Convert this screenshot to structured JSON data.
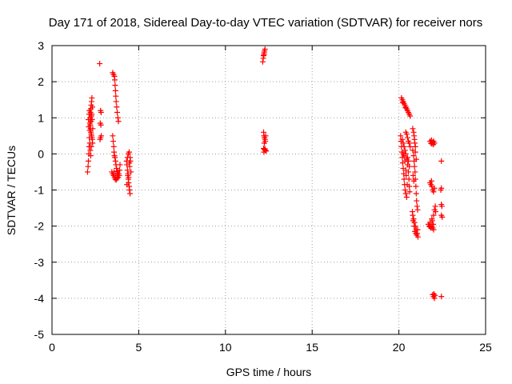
{
  "chart_data": {
    "type": "scatter",
    "title": "Day 171 of 2018, Sidereal Day-to-day VTEC variation (SDTVAR) for receiver nors",
    "xlabel": "GPS time / hours",
    "ylabel": "SDTVAR / TECUs",
    "xlim": [
      0,
      25
    ],
    "ylim": [
      -5,
      3
    ],
    "xticks": [
      0,
      5,
      10,
      15,
      20,
      25
    ],
    "yticks": [
      -5,
      -4,
      -3,
      -2,
      -1,
      0,
      1,
      2,
      3
    ],
    "xtick_labels": [
      "0",
      "5",
      "10",
      "15",
      "20",
      "25"
    ],
    "ytick_labels": [
      "-5",
      "-4",
      "-3",
      "-2",
      "-1",
      "0",
      "1",
      "2",
      "3"
    ],
    "grid": true,
    "marker": "+",
    "color": "#ff0000",
    "series": [
      {
        "name": "SDTVAR",
        "points": [
          [
            2.05,
            -0.5
          ],
          [
            2.08,
            -0.35
          ],
          [
            2.1,
            -0.2
          ],
          [
            2.12,
            0.0
          ],
          [
            2.14,
            0.2
          ],
          [
            2.15,
            0.45
          ],
          [
            2.17,
            0.65
          ],
          [
            2.18,
            0.85
          ],
          [
            2.2,
            1.0
          ],
          [
            2.22,
            1.15
          ],
          [
            2.24,
            1.25
          ],
          [
            2.26,
            1.35
          ],
          [
            2.28,
            1.45
          ],
          [
            2.3,
            1.55
          ],
          [
            2.2,
            0.8
          ],
          [
            2.22,
            0.7
          ],
          [
            2.24,
            0.6
          ],
          [
            2.26,
            0.55
          ],
          [
            2.28,
            0.5
          ],
          [
            2.3,
            0.45
          ],
          [
            2.32,
            0.4
          ],
          [
            2.34,
            0.3
          ],
          [
            2.25,
            0.9
          ],
          [
            2.27,
            1.05
          ],
          [
            2.29,
            1.1
          ],
          [
            2.31,
            0.95
          ],
          [
            2.16,
            1.2
          ],
          [
            2.14,
            1.1
          ],
          [
            2.18,
            0.3
          ],
          [
            2.21,
            0.1
          ],
          [
            2.23,
            -0.05
          ],
          [
            2.26,
            0.2
          ],
          [
            2.12,
            0.75
          ],
          [
            2.1,
            0.95
          ],
          [
            2.35,
            0.7
          ],
          [
            2.33,
            1.3
          ],
          [
            2.75,
            2.5
          ],
          [
            2.8,
            1.2
          ],
          [
            2.83,
            1.15
          ],
          [
            2.78,
            0.85
          ],
          [
            2.82,
            0.8
          ],
          [
            2.8,
            0.45
          ],
          [
            2.84,
            0.5
          ],
          [
            2.77,
            0.4
          ],
          [
            3.5,
            2.25
          ],
          [
            3.55,
            2.2
          ],
          [
            3.6,
            2.15
          ],
          [
            3.62,
            2.05
          ],
          [
            3.64,
            1.9
          ],
          [
            3.66,
            1.75
          ],
          [
            3.68,
            1.6
          ],
          [
            3.7,
            1.45
          ],
          [
            3.73,
            1.3
          ],
          [
            3.76,
            1.15
          ],
          [
            3.8,
            1.0
          ],
          [
            3.83,
            0.9
          ],
          [
            3.5,
            0.5
          ],
          [
            3.53,
            0.35
          ],
          [
            3.56,
            0.2
          ],
          [
            3.58,
            0.05
          ],
          [
            3.6,
            -0.05
          ],
          [
            3.63,
            -0.1
          ],
          [
            3.66,
            -0.2
          ],
          [
            3.69,
            -0.3
          ],
          [
            3.72,
            -0.4
          ],
          [
            3.75,
            -0.5
          ],
          [
            3.78,
            -0.55
          ],
          [
            3.8,
            -0.6
          ],
          [
            3.45,
            -0.5
          ],
          [
            3.5,
            -0.55
          ],
          [
            3.55,
            -0.6
          ],
          [
            3.6,
            -0.65
          ],
          [
            3.65,
            -0.7
          ],
          [
            3.7,
            -0.72
          ],
          [
            3.75,
            -0.68
          ],
          [
            3.82,
            -0.65
          ],
          [
            3.85,
            -0.55
          ],
          [
            3.9,
            -0.45
          ],
          [
            3.92,
            -0.3
          ],
          [
            3.58,
            -0.5
          ],
          [
            3.68,
            -0.6
          ],
          [
            3.78,
            -0.48
          ],
          [
            3.88,
            -0.6
          ],
          [
            4.3,
            -0.2
          ],
          [
            4.32,
            -0.3
          ],
          [
            4.35,
            -0.45
          ],
          [
            4.37,
            -0.6
          ],
          [
            4.4,
            -0.7
          ],
          [
            4.42,
            -0.8
          ],
          [
            4.45,
            -0.9
          ],
          [
            4.47,
            -1.0
          ],
          [
            4.5,
            -1.1
          ],
          [
            4.35,
            -0.1
          ],
          [
            4.4,
            0.0
          ],
          [
            4.45,
            0.05
          ],
          [
            4.5,
            -0.1
          ],
          [
            4.52,
            -0.2
          ],
          [
            4.48,
            -0.35
          ],
          [
            4.55,
            -0.5
          ],
          [
            4.38,
            -0.55
          ],
          [
            4.42,
            -0.65
          ],
          [
            4.46,
            -0.25
          ],
          [
            4.32,
            -0.85
          ],
          [
            12.15,
            2.55
          ],
          [
            12.18,
            2.65
          ],
          [
            12.2,
            2.72
          ],
          [
            12.23,
            2.8
          ],
          [
            12.25,
            2.85
          ],
          [
            12.28,
            2.9
          ],
          [
            12.22,
            2.75
          ],
          [
            12.2,
            0.6
          ],
          [
            12.22,
            0.5
          ],
          [
            12.25,
            0.45
          ],
          [
            12.28,
            0.4
          ],
          [
            12.3,
            0.35
          ],
          [
            12.24,
            0.3
          ],
          [
            12.2,
            0.15
          ],
          [
            12.25,
            0.12
          ],
          [
            12.3,
            0.1
          ],
          [
            12.35,
            0.08
          ],
          [
            12.22,
            0.05
          ],
          [
            12.28,
            0.14
          ],
          [
            12.32,
            0.5
          ],
          [
            20.15,
            1.55
          ],
          [
            20.2,
            1.5
          ],
          [
            20.25,
            1.45
          ],
          [
            20.3,
            1.4
          ],
          [
            20.35,
            1.35
          ],
          [
            20.4,
            1.3
          ],
          [
            20.45,
            1.25
          ],
          [
            20.5,
            1.2
          ],
          [
            20.55,
            1.15
          ],
          [
            20.6,
            1.1
          ],
          [
            20.65,
            1.05
          ],
          [
            20.22,
            1.42
          ],
          [
            20.38,
            1.28
          ],
          [
            20.1,
            0.5
          ],
          [
            20.12,
            0.35
          ],
          [
            20.15,
            0.2
          ],
          [
            20.18,
            0.05
          ],
          [
            20.2,
            -0.1
          ],
          [
            20.22,
            -0.25
          ],
          [
            20.25,
            -0.4
          ],
          [
            20.28,
            -0.55
          ],
          [
            20.3,
            -0.7
          ],
          [
            20.33,
            -0.85
          ],
          [
            20.36,
            -1.0
          ],
          [
            20.4,
            -1.1
          ],
          [
            20.45,
            -1.2
          ],
          [
            20.2,
            0.4
          ],
          [
            20.25,
            0.3
          ],
          [
            20.3,
            0.2
          ],
          [
            20.35,
            0.1
          ],
          [
            20.4,
            0.0
          ],
          [
            20.45,
            -0.15
          ],
          [
            20.5,
            -0.3
          ],
          [
            20.55,
            -0.5
          ],
          [
            20.58,
            -0.7
          ],
          [
            20.6,
            -0.9
          ],
          [
            20.62,
            -1.05
          ],
          [
            20.4,
            0.6
          ],
          [
            20.45,
            0.55
          ],
          [
            20.5,
            0.45
          ],
          [
            20.55,
            0.35
          ],
          [
            20.6,
            0.3
          ],
          [
            20.65,
            0.2
          ],
          [
            20.5,
            -0.1
          ],
          [
            20.55,
            -0.2
          ],
          [
            20.6,
            -0.35
          ],
          [
            20.3,
            -0.05
          ],
          [
            20.35,
            -0.2
          ],
          [
            20.4,
            -0.45
          ],
          [
            20.25,
            0.0
          ],
          [
            20.42,
            -0.6
          ],
          [
            20.48,
            -0.85
          ],
          [
            20.8,
            0.7
          ],
          [
            20.85,
            0.6
          ],
          [
            20.88,
            0.5
          ],
          [
            20.9,
            0.4
          ],
          [
            20.92,
            0.3
          ],
          [
            20.95,
            0.2
          ],
          [
            20.8,
            0.1
          ],
          [
            20.85,
            -0.05
          ],
          [
            20.88,
            -0.2
          ],
          [
            20.9,
            -0.35
          ],
          [
            20.93,
            -0.5
          ],
          [
            20.95,
            -0.7
          ],
          [
            20.98,
            -0.9
          ],
          [
            21.0,
            -1.1
          ],
          [
            21.02,
            -1.3
          ],
          [
            21.05,
            -1.45
          ],
          [
            21.08,
            -1.55
          ],
          [
            20.95,
            0.05
          ],
          [
            21.0,
            -0.15
          ],
          [
            20.82,
            -0.6
          ],
          [
            20.86,
            -0.75
          ],
          [
            20.8,
            -1.7
          ],
          [
            20.85,
            -1.8
          ],
          [
            20.9,
            -1.9
          ],
          [
            20.95,
            -2.0
          ],
          [
            21.0,
            -2.1
          ],
          [
            21.05,
            -2.2
          ],
          [
            21.1,
            -2.3
          ],
          [
            20.82,
            -1.85
          ],
          [
            20.88,
            -2.0
          ],
          [
            20.92,
            -2.15
          ],
          [
            20.98,
            -2.2
          ],
          [
            21.03,
            -2.25
          ],
          [
            21.08,
            -2.1
          ],
          [
            20.78,
            -1.6
          ],
          [
            21.8,
            0.35
          ],
          [
            21.85,
            0.3
          ],
          [
            21.9,
            0.28
          ],
          [
            21.95,
            0.32
          ],
          [
            22.0,
            0.35
          ],
          [
            22.05,
            0.3
          ],
          [
            21.88,
            0.38
          ],
          [
            21.98,
            0.26
          ],
          [
            21.8,
            -0.8
          ],
          [
            21.85,
            -0.85
          ],
          [
            21.9,
            -0.9
          ],
          [
            21.95,
            -1.0
          ],
          [
            22.0,
            -1.05
          ],
          [
            22.05,
            -0.95
          ],
          [
            21.88,
            -0.75
          ],
          [
            21.7,
            -1.95
          ],
          [
            21.75,
            -2.0
          ],
          [
            21.8,
            -2.02
          ],
          [
            21.85,
            -2.05
          ],
          [
            21.9,
            -2.0
          ],
          [
            21.95,
            -2.05
          ],
          [
            22.0,
            -2.1
          ],
          [
            21.8,
            -1.9
          ],
          [
            21.9,
            -1.8
          ],
          [
            22.0,
            -1.7
          ],
          [
            22.05,
            -1.55
          ],
          [
            22.1,
            -1.45
          ],
          [
            22.12,
            -1.6
          ],
          [
            21.98,
            -1.95
          ],
          [
            21.92,
            -1.85
          ],
          [
            21.95,
            -3.9
          ],
          [
            22.0,
            -3.95
          ],
          [
            22.05,
            -4.0
          ],
          [
            22.08,
            -3.92
          ],
          [
            22.02,
            -3.88
          ],
          [
            22.45,
            -0.2
          ],
          [
            22.45,
            -0.95
          ],
          [
            22.42,
            -1.0
          ],
          [
            22.45,
            -1.4
          ],
          [
            22.48,
            -1.45
          ],
          [
            22.45,
            -1.7
          ],
          [
            22.5,
            -1.75
          ],
          [
            22.45,
            -3.95
          ]
        ]
      }
    ]
  }
}
